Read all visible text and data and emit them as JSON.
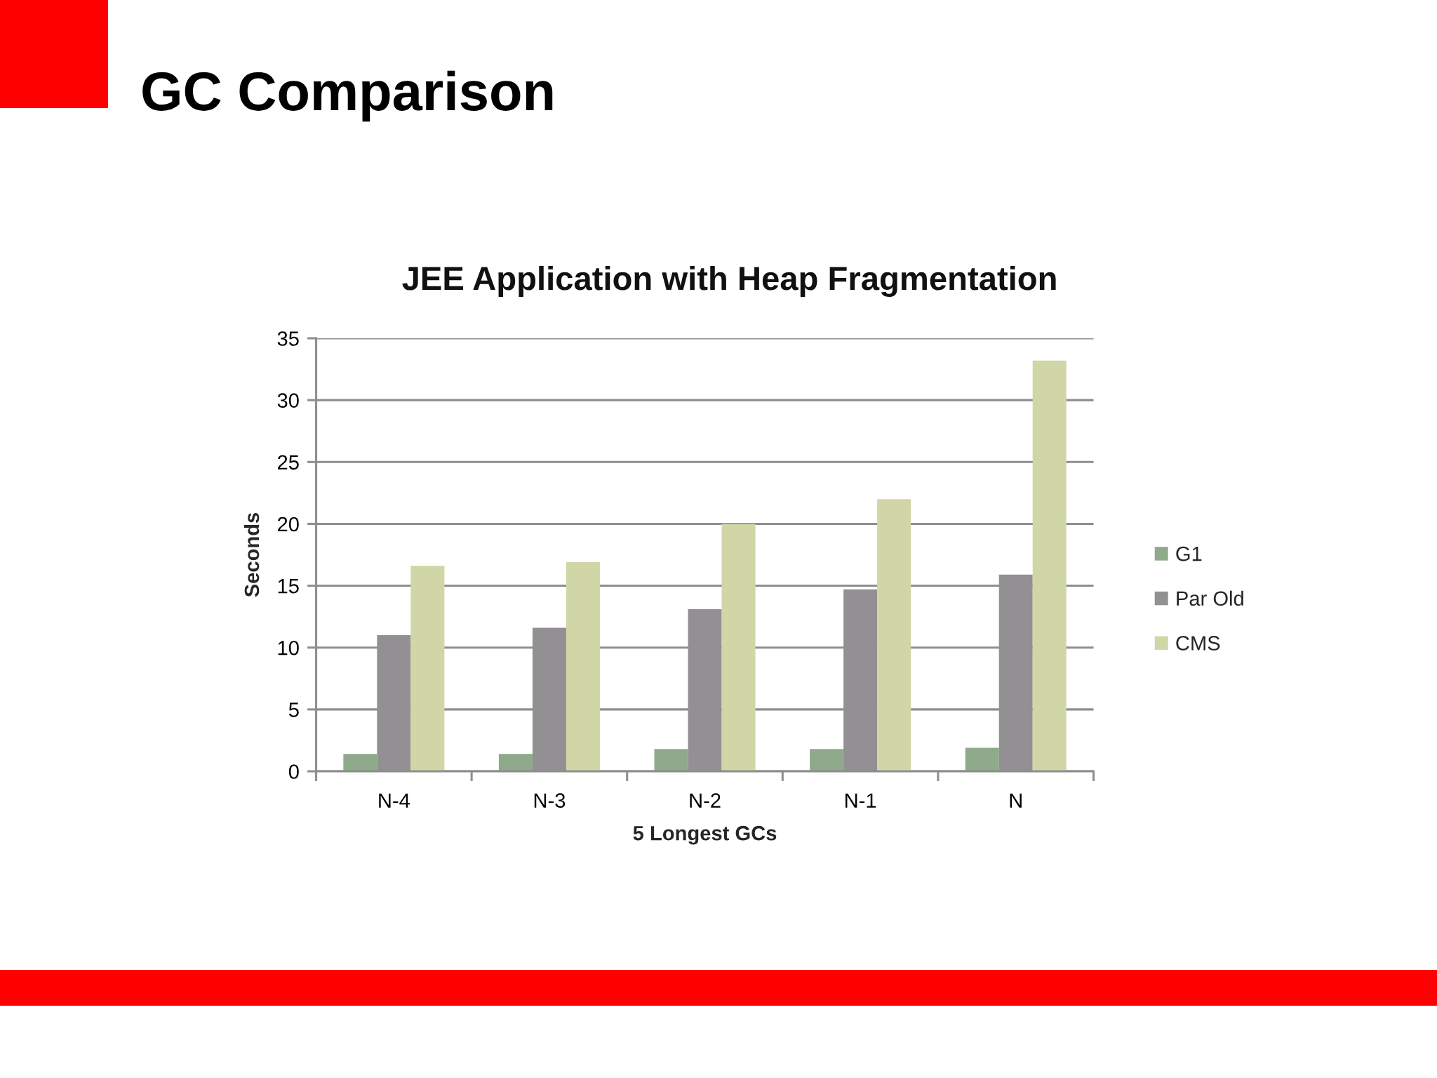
{
  "chart_data": {
    "type": "bar",
    "title": "GC Comparison",
    "subtitle": "JEE Application with Heap Fragmentation",
    "xlabel": "5 Longest GCs",
    "ylabel": "Seconds",
    "categories": [
      "N-4",
      "N-3",
      "N-2",
      "N-1",
      "N"
    ],
    "series": [
      {
        "name": "G1",
        "color": "#8faa8a",
        "values": [
          1.4,
          1.4,
          1.8,
          1.8,
          1.9
        ]
      },
      {
        "name": "Par Old",
        "color": "#929093",
        "values": [
          11.0,
          11.6,
          13.1,
          14.7,
          15.9
        ]
      },
      {
        "name": "CMS",
        "color": "#d0d6a6",
        "values": [
          16.6,
          16.9,
          20.0,
          22.0,
          33.2
        ]
      }
    ],
    "ylim": [
      0,
      35
    ],
    "yticks": [
      0,
      5,
      10,
      15,
      20,
      25,
      30,
      35
    ],
    "grid": "y",
    "legend": "right"
  }
}
